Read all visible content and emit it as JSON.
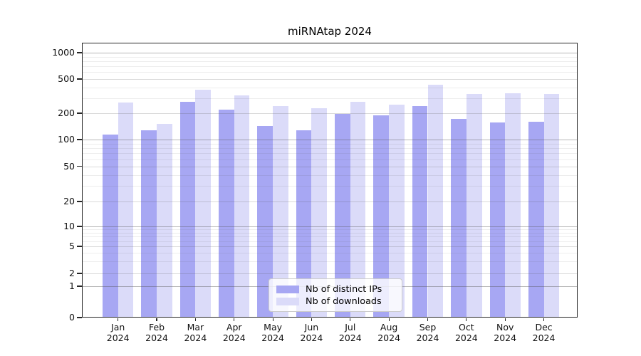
{
  "title": "miRNAtap 2024",
  "chart_data": {
    "type": "bar",
    "title": "miRNAtap 2024",
    "categories": [
      "Jan 2024",
      "Feb 2024",
      "Mar 2024",
      "Apr 2024",
      "May 2024",
      "Jun 2024",
      "Jul 2024",
      "Aug 2024",
      "Sep 2024",
      "Oct 2024",
      "Nov 2024",
      "Dec 2024"
    ],
    "series": [
      {
        "name": "Nb of distinct IPs",
        "color": "#a7a7f3",
        "values": [
          114,
          127,
          270,
          220,
          144,
          127,
          197,
          189,
          243,
          172,
          158,
          159
        ]
      },
      {
        "name": "Nb of downloads",
        "color": "#dbdbf9",
        "values": [
          266,
          151,
          378,
          325,
          243,
          228,
          271,
          253,
          426,
          334,
          342,
          334
        ]
      }
    ],
    "xlabel": "",
    "ylabel": "",
    "y_axis": {
      "scale": "log-like (0,1,2,5 sequence)",
      "ticks": [
        0,
        1,
        2,
        5,
        10,
        20,
        50,
        100,
        200,
        500,
        1000
      ],
      "tick_labels": [
        "0",
        "1",
        "2",
        "5",
        "10",
        "20",
        "50",
        "100",
        "200",
        "500",
        "1000"
      ]
    },
    "grid": {
      "horizontal": true,
      "minor_gridlines": true,
      "vertical": false
    },
    "legend": {
      "position": "bottom-center-inside",
      "entries": [
        "Nb of distinct IPs",
        "Nb of downloads"
      ]
    },
    "colors": {
      "bar_distinct_ips": "#a7a7f3",
      "bar_downloads": "#dbdbf9",
      "axis_frame": "#262626",
      "major_gridline": "#b4b4b4",
      "minor_gridline": "#ececec",
      "background": "#ffffff"
    }
  }
}
